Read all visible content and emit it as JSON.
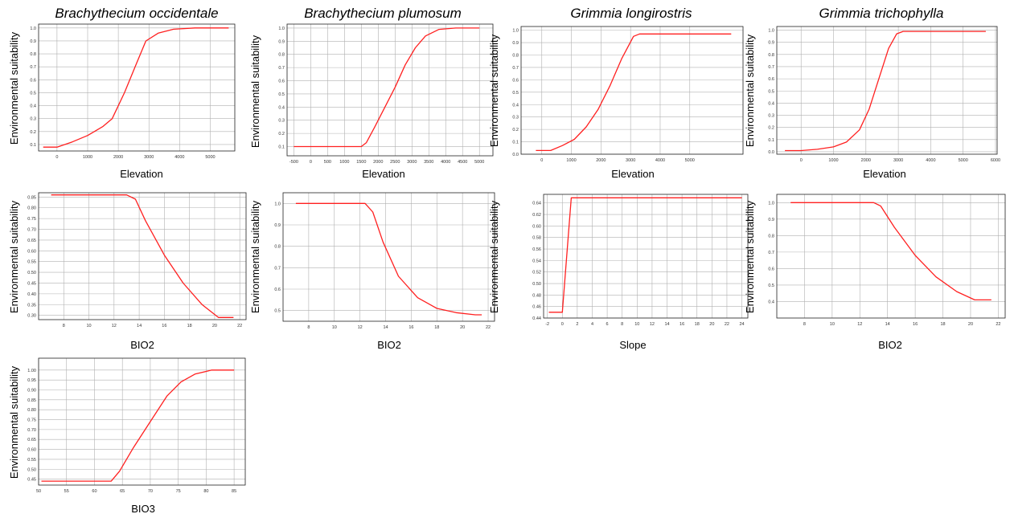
{
  "colors": {
    "curve": "#ff2020",
    "grid": "#b0b0b0",
    "frame": "#222222"
  },
  "titles": {
    "c1": "Brachythecium occidentale",
    "c2": "Brachythecium plumosum",
    "c3": "Grimmia longirostris",
    "c4": "Grimmia trichophylla"
  },
  "chart_data": [
    {
      "type": "line",
      "title": "Brachythecium occidentale",
      "ylabel": "Environmental suitability",
      "xlabel": "Elevation",
      "xlim": [
        -600,
        5800
      ],
      "ylim": [
        0.05,
        1.03
      ],
      "xticks": [
        0,
        1000,
        2000,
        3000,
        4000,
        5000
      ],
      "yticks": [
        0.1,
        0.2,
        0.3,
        0.4,
        0.5,
        0.6,
        0.7,
        0.8,
        0.9,
        1.0
      ],
      "xtick_labels": [
        "0",
        "1000",
        "2000",
        "3000",
        "4000",
        "5000"
      ],
      "ytick_labels": [
        "0.1",
        "0.2",
        "0.3",
        "0.4",
        "0.5",
        "0.6",
        "0.7",
        "0.8",
        "0.9",
        "1.0"
      ],
      "series": [
        {
          "x": [
            -450,
            0,
            500,
            1000,
            1500,
            1800,
            2200,
            2600,
            2900,
            3300,
            3800,
            4500,
            5600
          ],
          "y": [
            0.08,
            0.08,
            0.12,
            0.17,
            0.24,
            0.3,
            0.5,
            0.73,
            0.9,
            0.96,
            0.99,
            1.0,
            1.0
          ]
        }
      ]
    },
    {
      "type": "line",
      "title": "Brachythecium plumosum",
      "ylabel": "Environmental suitability",
      "xlabel": "Elevation",
      "xlim": [
        -700,
        5400
      ],
      "ylim": [
        0.03,
        1.03
      ],
      "xticks": [
        -500,
        0,
        500,
        1000,
        1500,
        2000,
        2500,
        3000,
        3500,
        4000,
        4500,
        5000
      ],
      "yticks": [
        0.1,
        0.2,
        0.3,
        0.4,
        0.5,
        0.6,
        0.7,
        0.8,
        0.9,
        1.0
      ],
      "xtick_labels": [
        "-500",
        "0",
        "500",
        "1000",
        "1500",
        "2000",
        "2500",
        "3000",
        "3500",
        "4000",
        "4500",
        "5000"
      ],
      "ytick_labels": [
        "0.1",
        "0.2",
        "0.3",
        "0.4",
        "0.5",
        "0.6",
        "0.7",
        "0.8",
        "0.9",
        "1.0"
      ],
      "series": [
        {
          "x": [
            -500,
            0,
            500,
            1000,
            1500,
            1650,
            1900,
            2200,
            2500,
            2800,
            3100,
            3400,
            3800,
            4300,
            5000
          ],
          "y": [
            0.1,
            0.1,
            0.1,
            0.1,
            0.1,
            0.13,
            0.25,
            0.4,
            0.55,
            0.72,
            0.85,
            0.94,
            0.99,
            1.0,
            1.0
          ]
        }
      ]
    },
    {
      "type": "line",
      "title": "Grimmia longirostris",
      "ylabel": "Environmental suitability",
      "xlabel": "Elevation",
      "xlim": [
        -700,
        6800
      ],
      "ylim": [
        0.0,
        1.03
      ],
      "xticks": [
        0,
        1000,
        2000,
        3000,
        4000,
        5000
      ],
      "yticks": [
        0.0,
        0.1,
        0.2,
        0.3,
        0.4,
        0.5,
        0.6,
        0.7,
        0.8,
        0.9,
        1.0
      ],
      "xtick_labels": [
        "0",
        "1000",
        "2000",
        "3000",
        "4000",
        "5000"
      ],
      "ytick_labels": [
        "0.0",
        "0.1",
        "0.2",
        "0.3",
        "0.4",
        "0.5",
        "0.6",
        "0.7",
        "0.8",
        "0.9",
        "1.0"
      ],
      "series": [
        {
          "x": [
            -200,
            300,
            700,
            1100,
            1500,
            1900,
            2300,
            2700,
            3100,
            3300,
            4000,
            5000,
            6400
          ],
          "y": [
            0.03,
            0.03,
            0.07,
            0.12,
            0.22,
            0.36,
            0.55,
            0.77,
            0.95,
            0.97,
            0.97,
            0.97,
            0.97
          ]
        }
      ]
    },
    {
      "type": "line",
      "title": "Grimmia trichophylla",
      "ylabel": "Environmental suitability",
      "xlabel": "Elevation",
      "xlim": [
        -750,
        6050
      ],
      "ylim": [
        -0.02,
        1.03
      ],
      "xticks": [
        0,
        1000,
        2000,
        3000,
        4000,
        5000,
        6000
      ],
      "yticks": [
        0.0,
        0.1,
        0.2,
        0.3,
        0.4,
        0.5,
        0.6,
        0.7,
        0.8,
        0.9,
        1.0
      ],
      "xtick_labels": [
        "0",
        "1000",
        "2000",
        "3000",
        "4000",
        "5000",
        "6000"
      ],
      "ytick_labels": [
        "0.0",
        "0.1",
        "0.2",
        "0.3",
        "0.4",
        "0.5",
        "0.6",
        "0.7",
        "0.8",
        "0.9",
        "1.0"
      ],
      "series": [
        {
          "x": [
            -500,
            0,
            500,
            1000,
            1400,
            1800,
            2100,
            2400,
            2700,
            2950,
            3150,
            4000,
            5700
          ],
          "y": [
            0.01,
            0.01,
            0.02,
            0.04,
            0.08,
            0.18,
            0.35,
            0.6,
            0.85,
            0.97,
            0.99,
            0.99,
            0.99
          ]
        }
      ]
    },
    {
      "type": "line",
      "ylabel": "Environmental suitability",
      "xlabel": "BIO2",
      "xlim": [
        6,
        22.5
      ],
      "ylim": [
        0.28,
        0.87
      ],
      "xticks": [
        8,
        10,
        12,
        14,
        16,
        18,
        20,
        22
      ],
      "yticks": [
        0.3,
        0.35,
        0.4,
        0.45,
        0.5,
        0.55,
        0.6,
        0.65,
        0.7,
        0.75,
        0.8,
        0.85
      ],
      "xtick_labels": [
        "8",
        "10",
        "12",
        "14",
        "16",
        "18",
        "20",
        "22"
      ],
      "ytick_labels": [
        "0.30",
        "0.35",
        "0.40",
        "0.45",
        "0.50",
        "0.55",
        "0.60",
        "0.65",
        "0.70",
        "0.75",
        "0.80",
        "0.85"
      ],
      "series": [
        {
          "x": [
            7,
            10,
            13,
            13.7,
            14.5,
            16,
            17.5,
            19,
            20.3,
            21.5
          ],
          "y": [
            0.86,
            0.86,
            0.86,
            0.84,
            0.74,
            0.58,
            0.45,
            0.35,
            0.29,
            0.29
          ]
        }
      ]
    },
    {
      "type": "line",
      "ylabel": "Environmental suitability",
      "xlabel": "BIO2",
      "xlim": [
        6,
        22.5
      ],
      "ylim": [
        0.45,
        1.05
      ],
      "xticks": [
        8,
        10,
        12,
        14,
        16,
        18,
        20,
        22
      ],
      "yticks": [
        0.5,
        0.6,
        0.7,
        0.8,
        0.9,
        1.0
      ],
      "xtick_labels": [
        "8",
        "10",
        "12",
        "14",
        "16",
        "18",
        "20",
        "22"
      ],
      "ytick_labels": [
        "0.5",
        "0.6",
        "0.7",
        "0.8",
        "0.9",
        "1.0"
      ],
      "series": [
        {
          "x": [
            7,
            10,
            12.4,
            13,
            13.8,
            15,
            16.5,
            18,
            19.5,
            21,
            21.5
          ],
          "y": [
            1.0,
            1.0,
            1.0,
            0.96,
            0.82,
            0.66,
            0.56,
            0.51,
            0.49,
            0.48,
            0.48
          ]
        }
      ]
    },
    {
      "type": "line",
      "ylabel": "Environmental suitability",
      "xlabel": "Slope",
      "xlim": [
        -2.5,
        24.8
      ],
      "ylim": [
        0.44,
        0.655
      ],
      "xticks": [
        -2,
        0,
        2,
        4,
        6,
        8,
        10,
        12,
        14,
        16,
        18,
        20,
        22,
        24
      ],
      "yticks": [
        0.44,
        0.46,
        0.48,
        0.5,
        0.52,
        0.54,
        0.56,
        0.58,
        0.6,
        0.62,
        0.64
      ],
      "xtick_labels": [
        "-2",
        "0",
        "2",
        "4",
        "6",
        "8",
        "10",
        "12",
        "14",
        "16",
        "18",
        "20",
        "22",
        "24"
      ],
      "ytick_labels": [
        "0.44",
        "0.46",
        "0.48",
        "0.50",
        "0.52",
        "0.54",
        "0.56",
        "0.58",
        "0.60",
        "0.62",
        "0.64"
      ],
      "series": [
        {
          "x": [
            -1.8,
            -0.1,
            0,
            1.2,
            10,
            24
          ],
          "y": [
            0.45,
            0.45,
            0.45,
            0.649,
            0.649,
            0.649
          ]
        }
      ]
    },
    {
      "type": "line",
      "ylabel": "Environmental suitability",
      "xlabel": "BIO2",
      "xlim": [
        6,
        22.5
      ],
      "ylim": [
        0.3,
        1.05
      ],
      "xticks": [
        8,
        10,
        12,
        14,
        16,
        18,
        20,
        22
      ],
      "yticks": [
        0.4,
        0.5,
        0.6,
        0.7,
        0.8,
        0.9,
        1.0
      ],
      "xtick_labels": [
        "8",
        "10",
        "12",
        "14",
        "16",
        "18",
        "20",
        "22"
      ],
      "ytick_labels": [
        "0.4",
        "0.5",
        "0.6",
        "0.7",
        "0.8",
        "0.9",
        "1.0"
      ],
      "series": [
        {
          "x": [
            7,
            10,
            13,
            13.5,
            14.5,
            16,
            17.5,
            19,
            20.3,
            21.5
          ],
          "y": [
            1.0,
            1.0,
            1.0,
            0.98,
            0.85,
            0.68,
            0.55,
            0.46,
            0.41,
            0.41
          ]
        }
      ]
    },
    {
      "type": "line",
      "ylabel": "Environmental suitability",
      "xlabel": "BIO3",
      "xlim": [
        50,
        87
      ],
      "ylim": [
        0.42,
        1.06
      ],
      "xticks": [
        50,
        55,
        60,
        65,
        70,
        75,
        80,
        85
      ],
      "yticks": [
        0.45,
        0.5,
        0.55,
        0.6,
        0.65,
        0.7,
        0.75,
        0.8,
        0.85,
        0.9,
        0.95,
        1.0
      ],
      "xtick_labels": [
        "50",
        "55",
        "60",
        "65",
        "70",
        "75",
        "80",
        "85"
      ],
      "ytick_labels": [
        "0.45",
        "0.50",
        "0.55",
        "0.60",
        "0.65",
        "0.70",
        "0.75",
        "0.80",
        "0.85",
        "0.90",
        "0.95",
        "1.00"
      ],
      "series": [
        {
          "x": [
            50.5,
            55,
            60,
            63,
            64.5,
            67,
            70,
            73,
            75.5,
            78,
            81,
            85
          ],
          "y": [
            0.44,
            0.44,
            0.44,
            0.44,
            0.49,
            0.61,
            0.74,
            0.87,
            0.94,
            0.98,
            1.0,
            1.0
          ]
        }
      ]
    }
  ]
}
